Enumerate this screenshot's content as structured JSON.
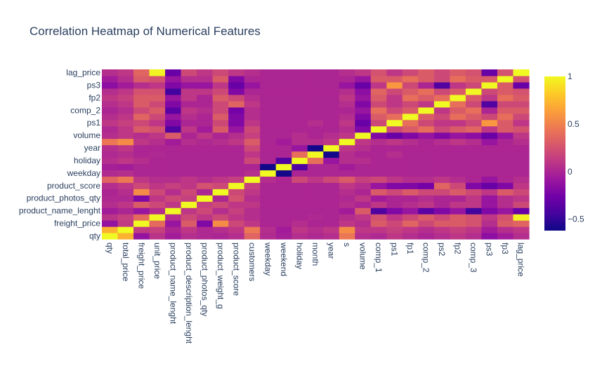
{
  "chart_data": {
    "type": "heatmap",
    "title": "Correlation Heatmap of Numerical Features",
    "features": [
      "qty",
      "total_price",
      "freight_price",
      "unit_price",
      "product_name_lenght",
      "product_description_lenght",
      "product_photos_qty",
      "product_weight_g",
      "product_score",
      "customers",
      "weekday",
      "weekend",
      "holiday",
      "month",
      "year",
      "s",
      "volume",
      "comp_1",
      "ps1",
      "fp1",
      "comp_2",
      "ps2",
      "fp2",
      "comp_3",
      "ps3",
      "fp3",
      "lag_price"
    ],
    "x_tick_labels": [
      "qty",
      "total_price",
      "freight_price",
      "unit_price",
      "product_name_lenght",
      "product_description_lenght",
      "product_photos_qty",
      "product_weight_g",
      "product_score",
      "customers",
      "weekday",
      "weekend",
      "holiday",
      "month",
      "year",
      "s",
      "volume",
      "comp_1",
      "ps1",
      "fp1",
      "comp_2",
      "ps2",
      "fp2",
      "comp_3",
      "ps3",
      "fp3",
      "lag_price"
    ],
    "y_tick_labels": [
      "qty",
      "freight_price",
      "product_name_lenght",
      "product_photos_qty",
      "product_score",
      "weekday",
      "holiday",
      "year",
      "volume",
      "ps1",
      "comp_2",
      "fp2",
      "ps3",
      "lag_price"
    ],
    "colorscale": "plasma",
    "colorbar": {
      "zmin": -0.62,
      "zmax": 1,
      "ticks": [
        -0.5,
        0,
        0.5,
        1
      ],
      "tick_labels": [
        "−0.5",
        "0",
        "0.5",
        "1"
      ]
    },
    "z": [
      [
        1,
        0.72,
        -0.12,
        0.08,
        -0.05,
        0.05,
        0.02,
        0,
        0.05,
        0.35,
        0.03,
        -0.03,
        0.05,
        0.02,
        0.05,
        0.45,
        0.05,
        0.02,
        0.1,
        0.05,
        0,
        0.05,
        0.1,
        0.05,
        -0.15,
        -0.05,
        0.05
      ],
      [
        0.72,
        1,
        0.12,
        0.15,
        0,
        0.1,
        0.02,
        0.05,
        0.1,
        0.45,
        0.05,
        -0.05,
        0.1,
        0.05,
        0.1,
        0.55,
        0.1,
        0.1,
        0.15,
        0.1,
        0.05,
        0.1,
        0.15,
        0.1,
        -0.05,
        0.05,
        0.1
      ],
      [
        -0.12,
        0.12,
        1,
        0.38,
        -0.1,
        0.3,
        -0.2,
        0.55,
        0.2,
        0.1,
        0,
        0,
        0.05,
        0,
        0,
        0.1,
        0.05,
        0.3,
        0.2,
        0.35,
        0.2,
        0.3,
        0.3,
        0.25,
        0.05,
        0.3,
        0.35
      ],
      [
        0.08,
        0.15,
        0.38,
        1,
        0.05,
        0.2,
        0.1,
        0.2,
        0.1,
        0.05,
        0,
        0,
        0,
        0.02,
        0,
        0.05,
        0.1,
        0.25,
        0.1,
        0.2,
        0.3,
        0.2,
        0.3,
        0.25,
        0.1,
        0.25,
        0.98
      ],
      [
        -0.05,
        0,
        -0.1,
        0.05,
        1,
        0.1,
        0.2,
        0.05,
        0.15,
        0.05,
        0,
        0,
        0,
        0,
        0,
        -0.05,
        0.3,
        -0.4,
        -0.2,
        -0.1,
        -0.35,
        -0.2,
        -0.1,
        -0.45,
        -0.2,
        -0.1,
        -0.3
      ],
      [
        0.05,
        0.1,
        0.3,
        0.2,
        0.1,
        1,
        0.15,
        0.2,
        0.1,
        0.1,
        0,
        0,
        0,
        0,
        0,
        0.05,
        0,
        0.1,
        0,
        0.05,
        0.1,
        0,
        0.1,
        0.1,
        -0.1,
        0.05,
        0.2
      ],
      [
        0.02,
        0.02,
        -0.2,
        0.1,
        0.2,
        0.15,
        1,
        0,
        0.25,
        0.05,
        0,
        0,
        0,
        0,
        0,
        0.02,
        0.1,
        -0.05,
        0,
        0,
        0.05,
        0,
        0,
        0.1,
        -0.1,
        0.05,
        0.1
      ],
      [
        0,
        0.05,
        0.55,
        0.2,
        0.05,
        0.2,
        0,
        1,
        0.2,
        0.1,
        0,
        0,
        0,
        0,
        0,
        0.05,
        0,
        0.3,
        0.2,
        0.3,
        0.2,
        0.2,
        0.3,
        0.2,
        0.1,
        0.3,
        0.2
      ],
      [
        0.05,
        0.1,
        0.2,
        0.1,
        0.15,
        0.1,
        0.25,
        0.2,
        1,
        0.15,
        0,
        0,
        0,
        0,
        0,
        0.1,
        0.05,
        -0.1,
        -0.2,
        -0.2,
        -0.25,
        0.35,
        0.2,
        -0.2,
        -0.3,
        -0.2,
        0.1
      ],
      [
        0.35,
        0.45,
        0.1,
        0.05,
        0.05,
        0.1,
        0.05,
        0.1,
        0.15,
        1,
        0.05,
        0,
        0.2,
        0.1,
        0.2,
        0.3,
        0.15,
        0.2,
        0.1,
        0.05,
        0.05,
        0.1,
        0.05,
        0,
        -0.1,
        0,
        0.05
      ],
      [
        0.03,
        0.05,
        0,
        0,
        0,
        0,
        0,
        0,
        0,
        0.05,
        1,
        -0.6,
        0,
        0,
        0,
        0,
        0,
        0,
        0,
        0,
        0,
        0,
        0,
        0,
        0,
        0,
        0
      ],
      [
        -0.03,
        -0.05,
        0,
        0,
        0,
        0,
        0,
        0,
        0,
        0,
        -0.6,
        1,
        -0.4,
        0,
        0,
        -0.05,
        0,
        0,
        0,
        0,
        0,
        0,
        0,
        0,
        0,
        0,
        0
      ],
      [
        0.05,
        0.1,
        0.05,
        0,
        0,
        0,
        0,
        0,
        0,
        0.2,
        0,
        -0.4,
        1,
        0.4,
        -0.1,
        0.05,
        0.05,
        0,
        0,
        0,
        0,
        0,
        0,
        0,
        0,
        0,
        0
      ],
      [
        0.02,
        0.05,
        0,
        0.02,
        0,
        0,
        0,
        0,
        0,
        0.1,
        0,
        0,
        0.4,
        1,
        -0.6,
        0.05,
        0,
        0,
        0.05,
        0,
        0,
        0,
        0,
        0,
        0,
        0,
        0
      ],
      [
        0.05,
        0.1,
        0,
        0,
        0,
        0,
        0,
        0,
        0,
        0.2,
        0,
        0,
        -0.1,
        -0.6,
        1,
        0.1,
        0.05,
        0,
        0,
        0,
        0,
        0,
        0,
        0,
        0,
        0,
        0
      ],
      [
        0.45,
        0.55,
        0.1,
        0.05,
        -0.05,
        0.05,
        0.02,
        0.05,
        0.1,
        0.3,
        0,
        -0.05,
        0.05,
        0.05,
        0.1,
        1,
        0.1,
        0.05,
        0.1,
        0.05,
        0,
        0.05,
        0.1,
        0.05,
        -0.1,
        0,
        0.05
      ],
      [
        0.05,
        0.1,
        0.05,
        0.1,
        0.3,
        0,
        0.1,
        0,
        0.05,
        0.15,
        0,
        0,
        0.05,
        0,
        0.05,
        0.1,
        1,
        -0.2,
        -0.3,
        -0.2,
        -0.1,
        -0.2,
        -0.1,
        -0.15,
        -0.3,
        -0.1,
        0.1
      ],
      [
        0.02,
        0.1,
        0.3,
        0.25,
        -0.4,
        0.1,
        -0.05,
        0.3,
        -0.1,
        0.2,
        0,
        0,
        0,
        0,
        0,
        0.05,
        -0.2,
        1,
        0.2,
        0.3,
        0.4,
        0.2,
        0.3,
        0.35,
        0.1,
        0.3,
        0.25
      ],
      [
        0.1,
        0.15,
        0.2,
        0.1,
        -0.2,
        0,
        0,
        0.2,
        -0.2,
        0.1,
        0,
        0,
        0,
        0.05,
        0,
        0.1,
        -0.3,
        0.2,
        1,
        0.4,
        0.2,
        0.1,
        0.1,
        0.2,
        0.6,
        0.3,
        0.1
      ],
      [
        0.05,
        0.1,
        0.35,
        0.2,
        -0.1,
        0.05,
        0,
        0.3,
        -0.2,
        0.05,
        0,
        0,
        0,
        0,
        0,
        0.05,
        -0.2,
        0.3,
        0.4,
        1,
        0.3,
        0.2,
        0.4,
        0.3,
        0.2,
        0.4,
        0.2
      ],
      [
        0,
        0.05,
        0.2,
        0.3,
        -0.35,
        0.1,
        0.05,
        0.2,
        -0.25,
        0.05,
        0,
        0,
        0,
        0,
        0,
        0,
        -0.1,
        0.4,
        0.2,
        0.3,
        1,
        0.1,
        0.3,
        0.4,
        0,
        0.3,
        0.3
      ],
      [
        0.05,
        0.1,
        0.3,
        0.2,
        -0.2,
        0,
        0,
        0.2,
        0.35,
        0.1,
        0,
        0,
        0,
        0,
        0,
        0.05,
        -0.2,
        0.2,
        0.1,
        0.2,
        0.1,
        1,
        0.4,
        0.2,
        -0.4,
        0.2,
        0.2
      ],
      [
        0.1,
        0.15,
        0.3,
        0.3,
        -0.1,
        0.1,
        0,
        0.3,
        0.2,
        0.05,
        0,
        0,
        0,
        0,
        0,
        0.1,
        -0.1,
        0.3,
        0.1,
        0.4,
        0.3,
        0.4,
        1,
        0.3,
        0.1,
        0.4,
        0.3
      ],
      [
        0.05,
        0.1,
        0.25,
        0.25,
        -0.45,
        0.1,
        0.1,
        0.2,
        -0.2,
        0,
        0,
        0,
        0,
        0,
        0,
        0.05,
        -0.15,
        0.35,
        0.2,
        0.3,
        0.4,
        0.2,
        0.3,
        1,
        0.2,
        0.3,
        0.25
      ],
      [
        -0.15,
        -0.05,
        0.05,
        0.1,
        -0.2,
        -0.1,
        -0.1,
        0.1,
        -0.3,
        -0.1,
        0,
        0,
        0,
        0,
        0,
        -0.1,
        -0.3,
        0.1,
        0.6,
        0.2,
        0,
        -0.4,
        0.1,
        0.2,
        1,
        0.3,
        -0.3
      ],
      [
        -0.05,
        0.05,
        0.3,
        0.25,
        -0.1,
        0.05,
        0.05,
        0.3,
        -0.2,
        0,
        0,
        0,
        0,
        0,
        0,
        0,
        -0.1,
        0.3,
        0.3,
        0.4,
        0.3,
        0.2,
        0.4,
        0.3,
        0.3,
        1,
        0.25
      ],
      [
        0.05,
        0.1,
        0.35,
        0.98,
        -0.3,
        0.2,
        0.1,
        0.2,
        0.1,
        0.05,
        0,
        0,
        0,
        0,
        0,
        0.05,
        0.1,
        0.25,
        0.1,
        0.2,
        0.3,
        0.2,
        0.3,
        0.25,
        -0.3,
        0.25,
        1
      ]
    ]
  }
}
